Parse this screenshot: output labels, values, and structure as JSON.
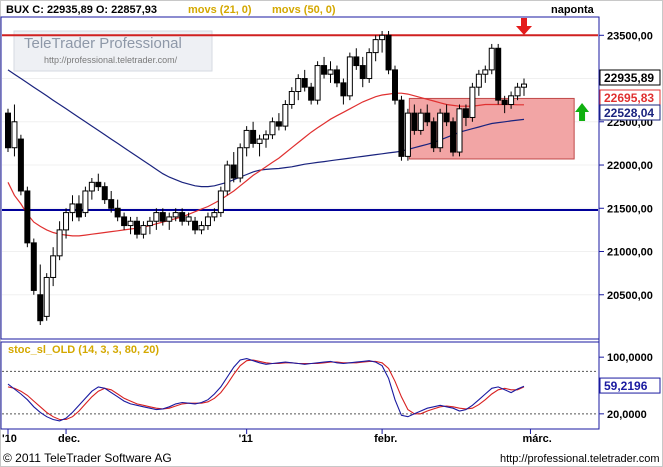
{
  "header": {
    "quote": "BUX C: 22935,89 O: 22857,93",
    "ma1_label": "movs (21, 0)",
    "ma2_label": "movs (50, 0)",
    "period": "naponta"
  },
  "watermark": {
    "title": "TeleTrader Professional",
    "url": "http://professional.teletrader.com/"
  },
  "stoch_label": "stoc_sl_OLD (14, 3, 3, 80, 20)",
  "footer": {
    "copyright": "© 2011 TeleTrader Software AG",
    "url": "http://professional.teletrader.com"
  },
  "colors": {
    "frame": "#1a1aa0",
    "candle_up": "#ffffff",
    "candle_down": "#000000",
    "ma21": "#e03030",
    "ma50": "#1a237e",
    "resistance": "#d02020",
    "support": "#00009a",
    "zone_fill": "#f2a5a5",
    "arrow_down": "#e41b1b",
    "arrow_up": "#10b010",
    "stoch_k": "#1a1aa0",
    "stoch_d": "#d82020"
  },
  "chart_data": {
    "type": "candlestick",
    "title": "BUX",
    "ylim": [
      20000,
      23700
    ],
    "y_ticks": [
      "23500,00",
      "23000,00",
      "22500,00",
      "22000,00",
      "21500,00",
      "21000,00",
      "20500,00"
    ],
    "y_tick_values": [
      23500,
      23000,
      22500,
      22000,
      21500,
      21000,
      20500
    ],
    "x_labels": [
      "'10",
      "dec.",
      "'11",
      "febr.",
      "márc."
    ],
    "x_label_index": [
      0,
      9,
      37,
      58,
      81
    ],
    "last_labels": [
      {
        "text": "22935,89",
        "value": 22935.89,
        "style": "price"
      },
      {
        "text": "22695,83",
        "value": 22695.83,
        "style": "ma21"
      },
      {
        "text": "22528,04",
        "value": 22528.04,
        "style": "ma50"
      }
    ],
    "resistance_level": 23500,
    "support_level": 21480,
    "zone": {
      "from_index": 63,
      "to_index": 87,
      "low": 22070,
      "high": 22770
    },
    "arrow_down_index": 80,
    "arrow_up_index": 89,
    "ohlc": [
      [
        22600,
        22650,
        22150,
        22200
      ],
      [
        22200,
        22700,
        22100,
        22500
      ],
      [
        22300,
        22350,
        21650,
        21700
      ],
      [
        21700,
        21750,
        21050,
        21100
      ],
      [
        21100,
        21150,
        20500,
        20550
      ],
      [
        20500,
        20850,
        20150,
        20200
      ],
      [
        20250,
        20750,
        20200,
        20700
      ],
      [
        20700,
        21050,
        20600,
        20950
      ],
      [
        20950,
        21350,
        20900,
        21250
      ],
      [
        21250,
        21500,
        21150,
        21450
      ],
      [
        21450,
        21650,
        21350,
        21550
      ],
      [
        21550,
        21650,
        21350,
        21400
      ],
      [
        21450,
        21750,
        21400,
        21700
      ],
      [
        21700,
        21850,
        21600,
        21800
      ],
      [
        21800,
        21900,
        21700,
        21750
      ],
      [
        21750,
        21800,
        21550,
        21600
      ],
      [
        21600,
        21700,
        21450,
        21500
      ],
      [
        21500,
        21600,
        21350,
        21400
      ],
      [
        21400,
        21450,
        21250,
        21300
      ],
      [
        21300,
        21400,
        21200,
        21350
      ],
      [
        21350,
        21400,
        21150,
        21200
      ],
      [
        21200,
        21350,
        21150,
        21300
      ],
      [
        21300,
        21400,
        21200,
        21350
      ],
      [
        21350,
        21500,
        21250,
        21450
      ],
      [
        21450,
        21500,
        21300,
        21350
      ],
      [
        21350,
        21450,
        21250,
        21400
      ],
      [
        21400,
        21500,
        21350,
        21450
      ],
      [
        21450,
        21500,
        21300,
        21350
      ],
      [
        21350,
        21450,
        21300,
        21400
      ],
      [
        21350,
        21400,
        21200,
        21250
      ],
      [
        21250,
        21350,
        21200,
        21300
      ],
      [
        21300,
        21450,
        21250,
        21400
      ],
      [
        21400,
        21500,
        21350,
        21450
      ],
      [
        21450,
        21750,
        21400,
        21700
      ],
      [
        21700,
        22050,
        21650,
        22000
      ],
      [
        22000,
        22150,
        21800,
        21850
      ],
      [
        21850,
        22250,
        21800,
        22200
      ],
      [
        22200,
        22450,
        22100,
        22400
      ],
      [
        22400,
        22500,
        22200,
        22250
      ],
      [
        22250,
        22350,
        22100,
        22300
      ],
      [
        22300,
        22400,
        22200,
        22350
      ],
      [
        22350,
        22550,
        22300,
        22500
      ],
      [
        22500,
        22600,
        22400,
        22450
      ],
      [
        22450,
        22750,
        22400,
        22700
      ],
      [
        22700,
        22900,
        22650,
        22850
      ],
      [
        22850,
        23050,
        22750,
        23000
      ],
      [
        23000,
        23100,
        22850,
        22900
      ],
      [
        22900,
        22950,
        22700,
        22750
      ],
      [
        22750,
        23200,
        22700,
        23150
      ],
      [
        23150,
        23250,
        23000,
        23050
      ],
      [
        23050,
        23200,
        22950,
        23100
      ],
      [
        23100,
        23150,
        22900,
        22950
      ],
      [
        22950,
        23000,
        22700,
        22800
      ],
      [
        22800,
        23300,
        22750,
        23250
      ],
      [
        23250,
        23350,
        23100,
        23150
      ],
      [
        23150,
        23250,
        22900,
        23000
      ],
      [
        23000,
        23350,
        22950,
        23300
      ],
      [
        23300,
        23500,
        23200,
        23450
      ],
      [
        23450,
        23550,
        23300,
        23500
      ],
      [
        23500,
        23550,
        23050,
        23100
      ],
      [
        23100,
        23150,
        22700,
        22750
      ],
      [
        22750,
        22800,
        22050,
        22100
      ],
      [
        22100,
        22650,
        22050,
        22600
      ],
      [
        22600,
        22700,
        22350,
        22400
      ],
      [
        22400,
        22650,
        22350,
        22600
      ],
      [
        22600,
        22700,
        22450,
        22500
      ],
      [
        22500,
        22550,
        22150,
        22200
      ],
      [
        22200,
        22650,
        22150,
        22600
      ],
      [
        22600,
        22700,
        22450,
        22500
      ],
      [
        22500,
        22550,
        22100,
        22150
      ],
      [
        22150,
        22700,
        22100,
        22650
      ],
      [
        22650,
        22700,
        22450,
        22550
      ],
      [
        22550,
        22950,
        22500,
        22900
      ],
      [
        22900,
        23100,
        22800,
        23050
      ],
      [
        23050,
        23150,
        22950,
        23100
      ],
      [
        23100,
        23400,
        23050,
        23350
      ],
      [
        23350,
        23400,
        22700,
        22750
      ],
      [
        22750,
        22800,
        22600,
        22700
      ],
      [
        22700,
        22850,
        22650,
        22800
      ],
      [
        22800,
        22950,
        22750,
        22900
      ],
      [
        22900,
        23000,
        22800,
        22936
      ]
    ],
    "ma21_values": [
      21800,
      21650,
      21550,
      21430,
      21340,
      21290,
      21250,
      21220,
      21200,
      21190,
      21180,
      21180,
      21190,
      21200,
      21210,
      21220,
      21230,
      21240,
      21250,
      21260,
      21270,
      21280,
      21300,
      21320,
      21340,
      21360,
      21380,
      21400,
      21430,
      21460,
      21490,
      21520,
      21560,
      21600,
      21650,
      21700,
      21760,
      21820,
      21880,
      21930,
      21980,
      22030,
      22080,
      22140,
      22200,
      22260,
      22320,
      22380,
      22430,
      22480,
      22530,
      22570,
      22610,
      22650,
      22690,
      22730,
      22760,
      22790,
      22810,
      22820,
      22830,
      22830,
      22820,
      22800,
      22780,
      22760,
      22740,
      22720,
      22700,
      22690,
      22680,
      22680,
      22680,
      22690,
      22700,
      22700,
      22700,
      22700,
      22700,
      22696,
      22696
    ],
    "ma50_values": [
      23100,
      23050,
      23000,
      22950,
      22900,
      22850,
      22800,
      22750,
      22700,
      22650,
      22600,
      22550,
      22500,
      22450,
      22400,
      22350,
      22300,
      22250,
      22200,
      22150,
      22100,
      22050,
      22000,
      21950,
      21900,
      21860,
      21830,
      21800,
      21780,
      21760,
      21750,
      21750,
      21760,
      21780,
      21800,
      21830,
      21860,
      21890,
      21920,
      21940,
      21950,
      21955,
      21960,
      21970,
      21980,
      21995,
      22010,
      22020,
      22030,
      22040,
      22050,
      22060,
      22070,
      22080,
      22090,
      22100,
      22110,
      22120,
      22130,
      22140,
      22150,
      22160,
      22180,
      22200,
      22220,
      22240,
      22260,
      22290,
      22320,
      22350,
      22380,
      22400,
      22420,
      22440,
      22460,
      22480,
      22490,
      22500,
      22510,
      22520,
      22528
    ],
    "stoch": {
      "ylim": [
        0,
        120
      ],
      "levels": [
        80,
        20
      ],
      "y_ticks": [
        "100,0000",
        "20,0000"
      ],
      "y_tick_values": [
        100,
        20
      ],
      "last_label": "59,2196",
      "last_value": 59.2196,
      "k": [
        62,
        55,
        48,
        40,
        30,
        22,
        16,
        12,
        10,
        14,
        22,
        32,
        42,
        52,
        58,
        56,
        50,
        44,
        38,
        34,
        32,
        30,
        28,
        26,
        27,
        30,
        34,
        36,
        35,
        34,
        36,
        40,
        48,
        58,
        72,
        86,
        96,
        98,
        95,
        92,
        90,
        91,
        92,
        93,
        92,
        91,
        90,
        91,
        92,
        93,
        94,
        92,
        91,
        92,
        93,
        94,
        95,
        93,
        88,
        70,
        40,
        18,
        16,
        20,
        24,
        28,
        30,
        32,
        30,
        28,
        24,
        26,
        32,
        40,
        48,
        56,
        58,
        54,
        50,
        55,
        59
      ],
      "d": [
        58,
        56,
        52,
        46,
        38,
        30,
        22,
        16,
        12,
        12,
        16,
        24,
        34,
        44,
        52,
        56,
        54,
        48,
        42,
        38,
        34,
        32,
        30,
        28,
        27,
        28,
        31,
        34,
        35,
        35,
        35,
        37,
        42,
        50,
        62,
        76,
        88,
        95,
        96,
        94,
        92,
        91,
        91,
        92,
        92,
        91,
        91,
        91,
        91,
        92,
        93,
        93,
        92,
        92,
        92,
        93,
        94,
        94,
        92,
        84,
        66,
        44,
        26,
        20,
        20,
        24,
        27,
        30,
        31,
        30,
        28,
        27,
        28,
        33,
        40,
        48,
        54,
        56,
        54,
        54,
        58
      ]
    }
  }
}
